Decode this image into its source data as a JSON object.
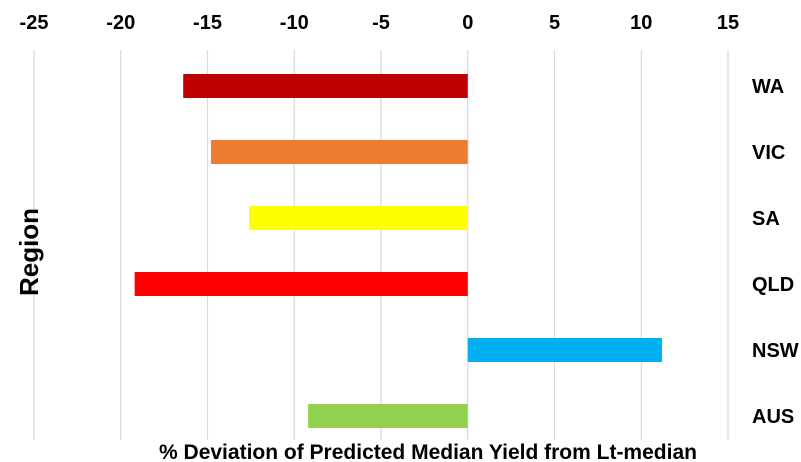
{
  "chart_data": {
    "type": "bar",
    "orientation": "horizontal",
    "title": "",
    "xlabel": "% Deviation of Predicted Median Yield from Lt-median",
    "ylabel": "Region",
    "xlim": [
      -25,
      15
    ],
    "x_ticks": [
      "-25",
      "-20",
      "-15",
      "-10",
      "-5",
      "0",
      "5",
      "10",
      "15"
    ],
    "x_axis_position": "top",
    "grid": "vertical",
    "legend": "none",
    "categories": [
      "WA",
      "VIC",
      "SA",
      "QLD",
      "NSW",
      "AUS"
    ],
    "values": [
      -16.4,
      -14.8,
      -12.6,
      -19.2,
      11.2,
      -9.2
    ],
    "colors": [
      "#c00000",
      "#ed7d31",
      "#ffff00",
      "#ff0000",
      "#00b0f0",
      "#92d050"
    ]
  }
}
